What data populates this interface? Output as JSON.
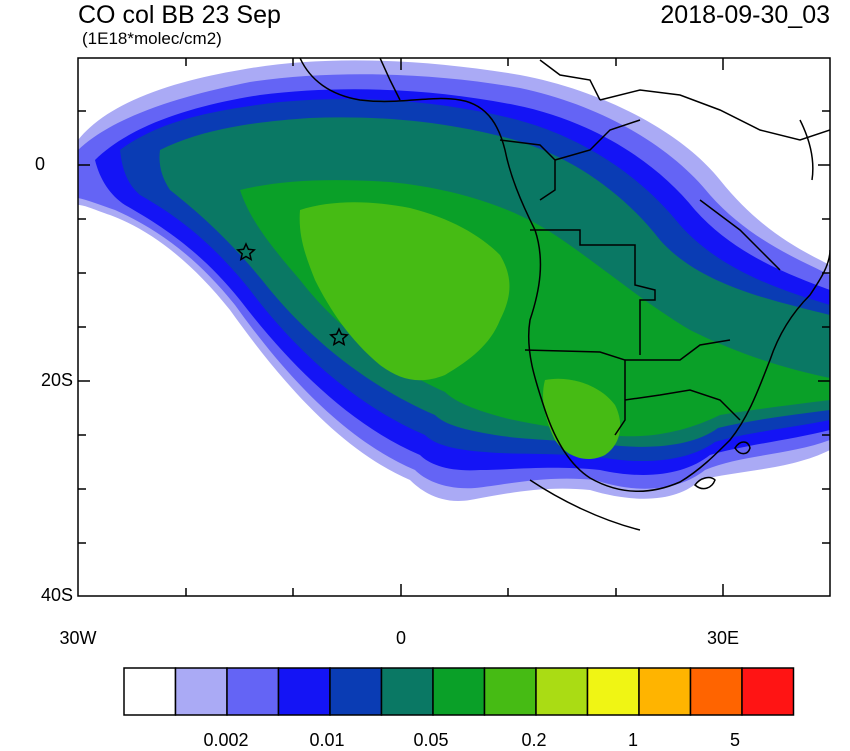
{
  "title": {
    "left": "CO col BB 23 Sep",
    "units": "(1E18*molec/cm2)",
    "right": "2018-09-30_03"
  },
  "axes": {
    "y_labels": [
      "0",
      "20S",
      "40S"
    ],
    "x_labels": [
      "30W",
      "0",
      "30E"
    ]
  },
  "colorbar": {
    "colors": [
      "#ffffff",
      "#aaaaf5",
      "#6464f5",
      "#1414f5",
      "#0a3cb4",
      "#0a7864",
      "#0aa028",
      "#46bb14",
      "#aadc14",
      "#f0f514",
      "#ffb400",
      "#ff6400",
      "#ff1414"
    ],
    "labels": [
      "0.002",
      "0.01",
      "0.05",
      "0.2",
      "1",
      "5"
    ]
  },
  "markers": {
    "count": 2,
    "symbol": "star"
  }
}
